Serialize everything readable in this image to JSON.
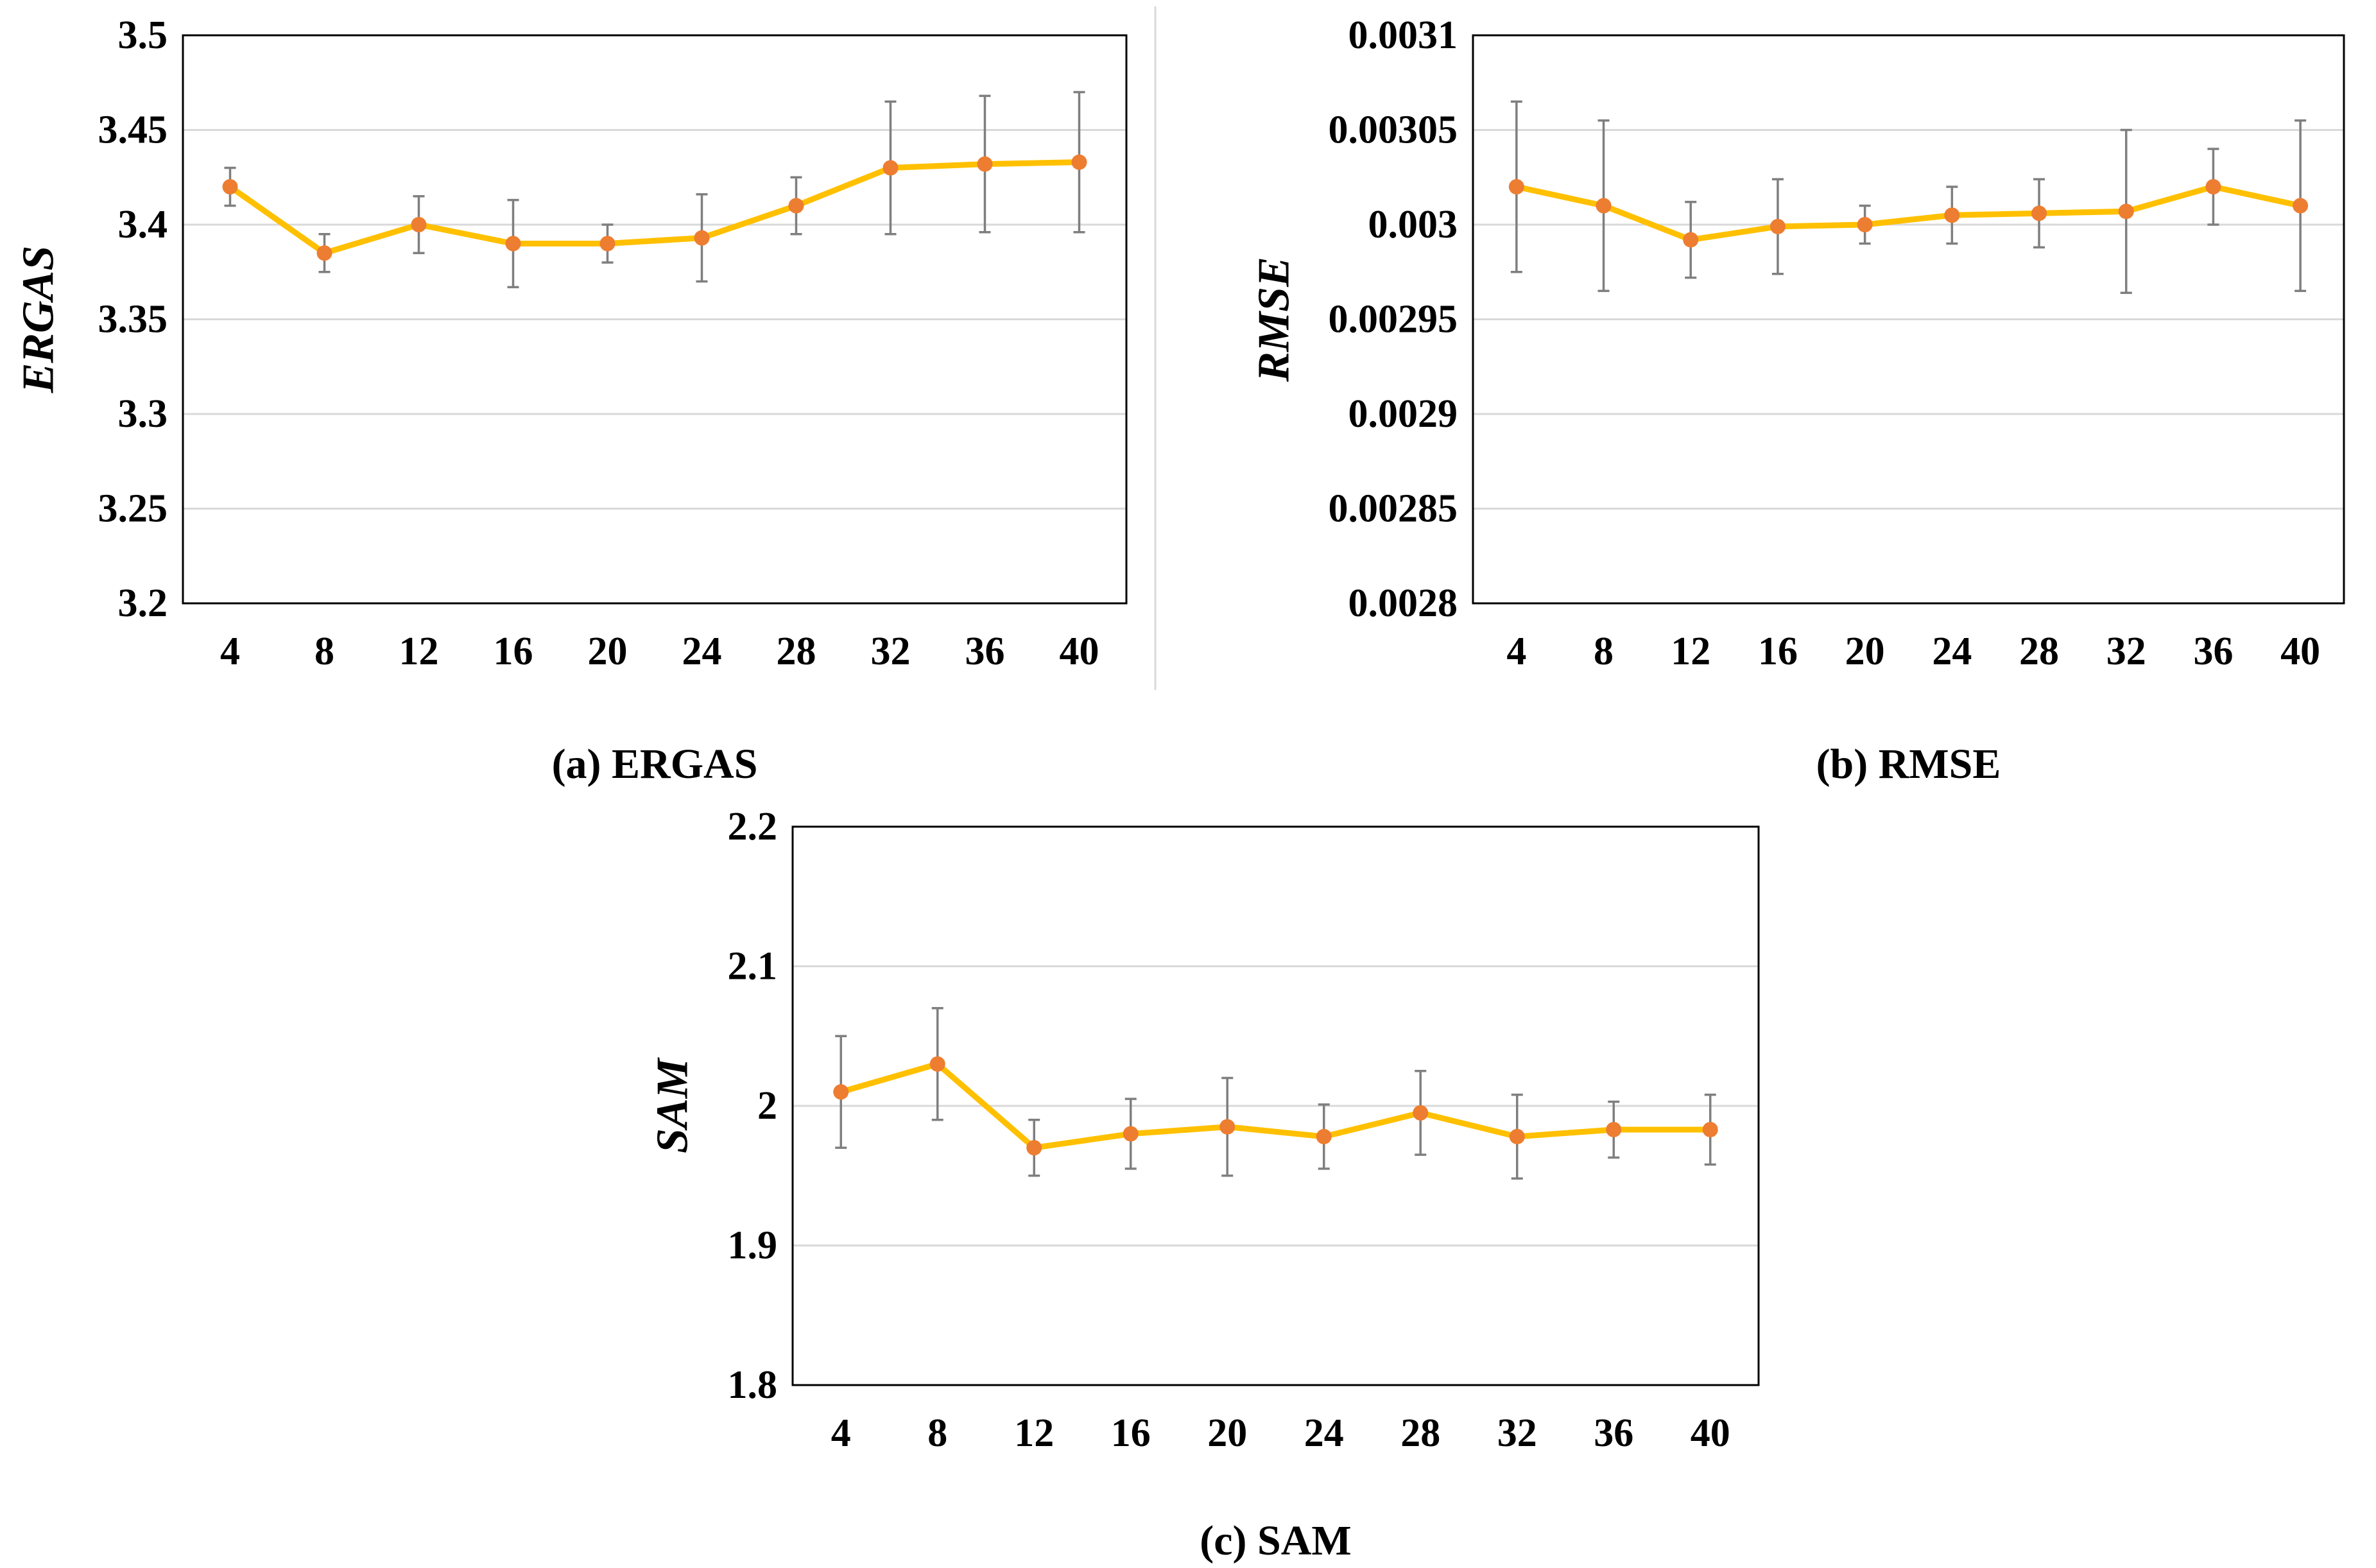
{
  "colors": {
    "line": "#FFC000",
    "marker": "#ED7D31",
    "errorbar": "#7F7F7F",
    "grid": "#D9D9D9",
    "frame": "#000000",
    "separator": "#D9D9D9"
  },
  "chart_data": [
    {
      "type": "line",
      "caption": "(a) ERGAS",
      "ylabel": "ERGAS",
      "xlabel": "",
      "categories": [
        "4",
        "8",
        "12",
        "16",
        "20",
        "24",
        "28",
        "32",
        "36",
        "40"
      ],
      "ylim": [
        3.2,
        3.5
      ],
      "yticks": [
        3.2,
        3.25,
        3.3,
        3.35,
        3.4,
        3.45,
        3.5
      ],
      "ytick_labels": [
        "3.2",
        "3.25",
        "3.3",
        "3.35",
        "3.4",
        "3.45",
        "3.5"
      ],
      "grid": true,
      "values": [
        3.42,
        3.385,
        3.4,
        3.39,
        3.39,
        3.393,
        3.41,
        3.43,
        3.432,
        3.433
      ],
      "errors": [
        0.01,
        0.01,
        0.015,
        0.023,
        0.01,
        0.023,
        0.015,
        0.035,
        0.036,
        0.037
      ]
    },
    {
      "type": "line",
      "caption": "(b) RMSE",
      "ylabel": "RMSE",
      "xlabel": "",
      "categories": [
        "4",
        "8",
        "12",
        "16",
        "20",
        "24",
        "28",
        "32",
        "36",
        "40"
      ],
      "ylim": [
        0.0028,
        0.0031
      ],
      "yticks": [
        0.0028,
        0.00285,
        0.0029,
        0.00295,
        0.003,
        0.00305,
        0.0031
      ],
      "ytick_labels": [
        "0.0028",
        "0.00285",
        "0.0029",
        "0.00295",
        "0.003",
        "0.00305",
        "0.0031"
      ],
      "grid": true,
      "values": [
        0.00302,
        0.00301,
        0.002992,
        0.002999,
        0.003,
        0.003005,
        0.003006,
        0.003007,
        0.00302,
        0.00301
      ],
      "errors": [
        4.5e-05,
        4.5e-05,
        2e-05,
        2.5e-05,
        1e-05,
        1.5e-05,
        1.8e-05,
        4.3e-05,
        2e-05,
        4.5e-05
      ]
    },
    {
      "type": "line",
      "caption": "(c) SAM",
      "ylabel": "SAM",
      "xlabel": "",
      "categories": [
        "4",
        "8",
        "12",
        "16",
        "20",
        "24",
        "28",
        "32",
        "36",
        "40"
      ],
      "ylim": [
        1.8,
        2.2
      ],
      "yticks": [
        1.8,
        1.9,
        2.0,
        2.1,
        2.2
      ],
      "ytick_labels": [
        "1.8",
        "1.9",
        "2",
        "2.1",
        "2.2"
      ],
      "grid": true,
      "values": [
        2.01,
        2.03,
        1.97,
        1.98,
        1.985,
        1.978,
        1.995,
        1.978,
        1.983,
        1.983
      ],
      "errors": [
        0.04,
        0.04,
        0.02,
        0.025,
        0.035,
        0.023,
        0.03,
        0.03,
        0.02,
        0.025
      ]
    }
  ]
}
